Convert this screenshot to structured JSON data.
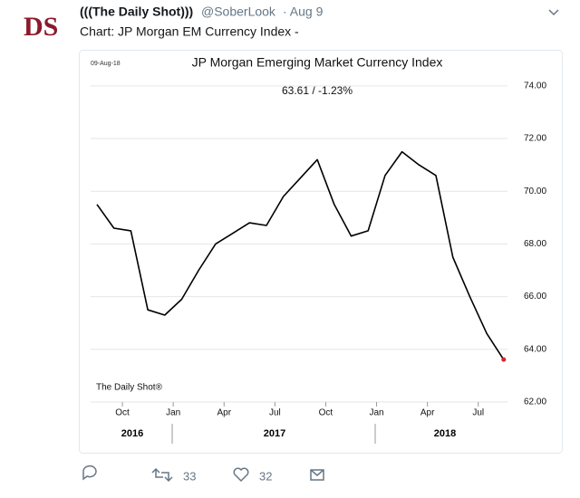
{
  "tweet": {
    "avatar": "DS",
    "name": "(((The Daily Shot)))",
    "handle": "@SoberLook",
    "time": "· Aug 9",
    "text": "Chart: JP Morgan EM Currency Index -",
    "retweets": 33,
    "likes": 32
  },
  "chart_data": {
    "type": "line",
    "title": "JP Morgan Emerging Market Currency Index",
    "subtitle": "63.61  /  -1.23%",
    "date_label": "09-Aug-18",
    "source": "The Daily Shot®",
    "x": [
      "2016-08",
      "2016-09",
      "2016-10",
      "2016-11",
      "2016-12",
      "2017-01",
      "2017-02",
      "2017-03",
      "2017-04",
      "2017-05",
      "2017-06",
      "2017-07",
      "2017-08",
      "2017-09",
      "2017-10",
      "2017-11",
      "2017-12",
      "2018-01",
      "2018-02",
      "2018-03",
      "2018-04",
      "2018-05",
      "2018-06",
      "2018-07",
      "2018-08"
    ],
    "series": [
      {
        "name": "JP Morgan Emerging Market Currency Index",
        "color": "#000000",
        "values": [
          69.5,
          68.6,
          68.5,
          65.5,
          65.3,
          65.9,
          67.0,
          68.0,
          68.4,
          68.8,
          68.7,
          69.8,
          70.5,
          71.2,
          69.5,
          68.3,
          68.5,
          70.6,
          71.5,
          71.0,
          70.6,
          67.5,
          66.0,
          64.6,
          63.61
        ]
      }
    ],
    "end_marker_color": "#d62728",
    "ylim": [
      62,
      75.3
    ],
    "yticks": [
      {
        "value": 62,
        "label": "62.00"
      },
      {
        "value": 64,
        "label": "64.00"
      },
      {
        "value": 66,
        "label": "66.00"
      },
      {
        "value": 68,
        "label": "68.00"
      },
      {
        "value": 70,
        "label": "70.00"
      },
      {
        "value": 72,
        "label": "72.00"
      },
      {
        "value": 74,
        "label": "74.00"
      }
    ],
    "xticks": [
      {
        "value": "2016-10",
        "label": "Oct"
      },
      {
        "value": "2017-01",
        "label": "Jan"
      },
      {
        "value": "2017-04",
        "label": "Apr"
      },
      {
        "value": "2017-07",
        "label": "Jul"
      },
      {
        "value": "2017-10",
        "label": "Oct"
      },
      {
        "value": "2018-01",
        "label": "Jan"
      },
      {
        "value": "2018-04",
        "label": "Apr"
      },
      {
        "value": "2018-07",
        "label": "Jul"
      }
    ],
    "year_labels": [
      "2016",
      "2017",
      "2018"
    ],
    "grid": true
  }
}
